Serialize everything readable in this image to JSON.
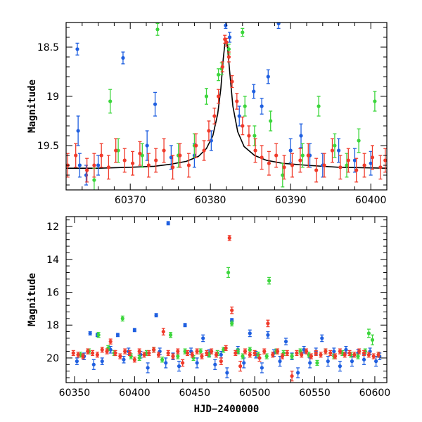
{
  "chart_data": [
    {
      "type": "scatter",
      "panel": "top",
      "xlabel": "",
      "ylabel": "Magnitude",
      "xlim": [
        60362,
        60402
      ],
      "ylim": [
        19.95,
        18.25
      ],
      "y_inverted": true,
      "xticks": [
        60370,
        60380,
        60390,
        60400
      ],
      "yticks": [
        18.5,
        19,
        19.5
      ],
      "colors": {
        "blue": "#1f5fe0",
        "green": "#3cd63c",
        "red": "#f03a2a",
        "model": "#000000"
      },
      "model_curve": {
        "name": "",
        "x": [
          60362,
          60366,
          60370,
          60373,
          60375,
          60377,
          60378.5,
          60379.5,
          60380.3,
          60380.9,
          60381.3,
          60381.6,
          60381.85,
          60382.1,
          60382.4,
          60382.8,
          60383.4,
          60384.2,
          60385.5,
          60387,
          60389,
          60392,
          60396,
          60402
        ],
        "y": [
          19.73,
          19.73,
          19.72,
          19.71,
          19.69,
          19.66,
          19.61,
          19.53,
          19.4,
          19.18,
          18.92,
          18.62,
          18.43,
          18.47,
          18.75,
          19.1,
          19.36,
          19.51,
          19.6,
          19.65,
          19.68,
          19.7,
          19.72,
          19.73
        ]
      },
      "series": [
        {
          "name": "",
          "color": "blue",
          "x": [
            60363.4,
            60363.5,
            60363.7,
            60364.5,
            60366.0,
            60369.1,
            60372.1,
            60373.1,
            60375.1,
            60378.0,
            60380.1,
            60381.9,
            60382.4,
            60383.6,
            60385.4,
            60386.4,
            60387.2,
            60388.5,
            60390.0,
            60391.3,
            60392.4,
            60394.0,
            60396.0,
            60398.0,
            60400.0
          ],
          "y": [
            18.52,
            19.35,
            19.7,
            19.8,
            19.7,
            18.61,
            19.5,
            19.08,
            19.62,
            19.6,
            19.45,
            18.28,
            18.4,
            19.2,
            18.95,
            19.1,
            18.8,
            18.26,
            19.55,
            19.4,
            19.6,
            19.7,
            19.55,
            19.65,
            19.68
          ],
          "err": [
            0.06,
            0.15,
            0.12,
            0.1,
            0.1,
            0.06,
            0.15,
            0.12,
            0.12,
            0.12,
            0.1,
            0.03,
            0.05,
            0.1,
            0.07,
            0.08,
            0.07,
            0.05,
            0.12,
            0.12,
            0.12,
            0.12,
            0.12,
            0.12,
            0.12
          ]
        },
        {
          "name": "",
          "color": "green",
          "x": [
            60365.5,
            60367.5,
            60368.5,
            60371.5,
            60373.4,
            60376.0,
            60378.0,
            60379.5,
            60381.0,
            60381.4,
            60382.3,
            60384.0,
            60384.3,
            60385.5,
            60387.5,
            60389.0,
            60391.5,
            60393.5,
            60395.5,
            60397.0,
            60398.5,
            60400.5
          ],
          "y": [
            19.85,
            19.05,
            19.55,
            19.6,
            18.32,
            19.6,
            19.5,
            19.0,
            18.78,
            18.72,
            18.52,
            18.35,
            19.1,
            19.4,
            19.25,
            19.8,
            19.6,
            19.1,
            19.5,
            19.7,
            19.45,
            19.05
          ],
          "err": [
            0.12,
            0.12,
            0.12,
            0.12,
            0.06,
            0.12,
            0.12,
            0.08,
            0.06,
            0.06,
            0.05,
            0.04,
            0.1,
            0.1,
            0.1,
            0.12,
            0.12,
            0.1,
            0.12,
            0.12,
            0.12,
            0.1
          ]
        },
        {
          "name": "",
          "color": "red",
          "x": [
            60362.2,
            60363.2,
            60364.6,
            60365.5,
            60366.4,
            60367.3,
            60368.2,
            60369.3,
            60370.3,
            60371.2,
            60372.3,
            60373.2,
            60374.2,
            60375.3,
            60376.2,
            60377.3,
            60378.2,
            60379.2,
            60379.8,
            60380.5,
            60381.0,
            60381.5,
            60381.8,
            60382.0,
            60382.3,
            60382.7,
            60383.3,
            60384.0,
            60384.8,
            60385.6,
            60386.4,
            60387.3,
            60388.2,
            60389.2,
            60390.2,
            60391.2,
            60392.2,
            60393.2,
            60394.2,
            60395.2,
            60396.2,
            60397.2,
            60398.2,
            60399.2,
            60400.2,
            60401.2,
            60401.8
          ],
          "y": [
            19.7,
            19.6,
            19.75,
            19.7,
            19.6,
            19.72,
            19.55,
            19.65,
            19.68,
            19.58,
            19.7,
            19.65,
            19.55,
            19.72,
            19.6,
            19.7,
            19.5,
            19.55,
            19.35,
            19.2,
            19.0,
            18.7,
            18.42,
            18.45,
            18.6,
            18.85,
            19.05,
            19.3,
            19.4,
            19.55,
            19.62,
            19.68,
            19.6,
            19.72,
            19.7,
            19.65,
            19.6,
            19.75,
            19.7,
            19.55,
            19.72,
            19.65,
            19.75,
            19.7,
            19.62,
            19.72,
            19.65
          ],
          "err": [
            0.12,
            0.12,
            0.12,
            0.12,
            0.12,
            0.12,
            0.12,
            0.12,
            0.12,
            0.12,
            0.12,
            0.12,
            0.12,
            0.12,
            0.12,
            0.12,
            0.12,
            0.1,
            0.1,
            0.08,
            0.07,
            0.05,
            0.04,
            0.04,
            0.05,
            0.06,
            0.08,
            0.09,
            0.1,
            0.12,
            0.12,
            0.12,
            0.12,
            0.12,
            0.12,
            0.12,
            0.12,
            0.12,
            0.12,
            0.12,
            0.12,
            0.12,
            0.12,
            0.12,
            0.12,
            0.12,
            0.12
          ]
        }
      ]
    },
    {
      "type": "scatter",
      "panel": "bottom",
      "xlabel": "HJD−2400000",
      "ylabel": "Magnitude",
      "xlim": [
        60343,
        60610
      ],
      "ylim": [
        21.5,
        11.4
      ],
      "y_inverted": true,
      "xticks": [
        60350,
        60400,
        60450,
        60500,
        60550,
        60600
      ],
      "yticks": [
        12,
        14,
        16,
        18,
        20
      ],
      "colors": {
        "blue": "#1f5fe0",
        "green": "#3cd63c",
        "red": "#f03a2a"
      },
      "series": [
        {
          "name": "",
          "color": "blue",
          "x": [
            60352,
            60358,
            60363,
            60366,
            60369,
            60373,
            60380,
            60386,
            60391,
            60395,
            60400,
            60405,
            60411,
            60418,
            60421,
            60426,
            60428,
            60432,
            60437,
            60442,
            60447,
            60452,
            60457,
            60462,
            60467,
            60472,
            60477,
            60481,
            60486,
            60491,
            60496,
            60501,
            60506,
            60511,
            60516,
            60521,
            60526,
            60531,
            60536,
            60541,
            60546,
            60551,
            60556,
            60561,
            60566,
            60571,
            60576,
            60581,
            60586,
            60591,
            60596,
            60601,
            60604
          ],
          "y": [
            20.2,
            19.9,
            18.5,
            20.4,
            18.6,
            20.2,
            19.5,
            18.6,
            20.1,
            19.6,
            18.3,
            19.8,
            20.6,
            17.4,
            19.6,
            20.3,
            11.8,
            19.9,
            20.5,
            18.0,
            19.6,
            20.3,
            18.8,
            19.7,
            20.4,
            19.8,
            20.9,
            17.7,
            19.5,
            20.3,
            18.5,
            19.8,
            20.6,
            18.6,
            19.7,
            20.2,
            19.0,
            19.9,
            20.9,
            19.5,
            20.3,
            19.6,
            18.8,
            20.2,
            19.6,
            20.5,
            19.5,
            20.2,
            19.7,
            20.1,
            19.6,
            20.2,
            19.9
          ],
          "err": [
            0.2,
            0.2,
            0.1,
            0.3,
            0.1,
            0.2,
            0.2,
            0.1,
            0.2,
            0.2,
            0.1,
            0.2,
            0.3,
            0.1,
            0.2,
            0.3,
            0.1,
            0.2,
            0.3,
            0.1,
            0.2,
            0.3,
            0.2,
            0.2,
            0.3,
            0.2,
            0.3,
            0.1,
            0.2,
            0.3,
            0.2,
            0.2,
            0.3,
            0.2,
            0.2,
            0.3,
            0.2,
            0.2,
            0.3,
            0.2,
            0.3,
            0.2,
            0.2,
            0.3,
            0.2,
            0.3,
            0.2,
            0.3,
            0.2,
            0.3,
            0.2,
            0.3,
            0.2
          ]
        },
        {
          "name": "",
          "color": "green",
          "x": [
            60355,
            60362,
            60370,
            60378,
            60383,
            60390,
            60397,
            60404,
            60410,
            60416,
            60423,
            60430,
            60436,
            60442,
            60449,
            60455,
            60462,
            60469,
            60474,
            60478,
            60481,
            60486,
            60490,
            60496,
            60503,
            60510,
            60512,
            60518,
            60524,
            60531,
            60538,
            60545,
            60552,
            60559,
            60566,
            60573,
            60580,
            60586,
            60592,
            60595,
            60598,
            60603
          ],
          "y": [
            19.8,
            19.6,
            18.6,
            19.4,
            19.7,
            17.6,
            19.9,
            20.0,
            19.7,
            19.5,
            20.1,
            18.6,
            19.9,
            19.6,
            20.0,
            19.6,
            19.8,
            19.7,
            19.5,
            14.8,
            17.9,
            19.6,
            19.9,
            19.5,
            19.8,
            19.9,
            15.3,
            19.6,
            19.7,
            19.9,
            19.6,
            19.8,
            20.3,
            19.6,
            19.9,
            19.7,
            19.8,
            19.9,
            19.6,
            18.5,
            18.9,
            19.8
          ],
          "err": [
            0.15,
            0.15,
            0.15,
            0.15,
            0.15,
            0.15,
            0.15,
            0.15,
            0.15,
            0.15,
            0.15,
            0.15,
            0.15,
            0.15,
            0.15,
            0.15,
            0.15,
            0.15,
            0.15,
            0.3,
            0.15,
            0.15,
            0.15,
            0.15,
            0.15,
            0.15,
            0.2,
            0.15,
            0.15,
            0.15,
            0.15,
            0.15,
            0.15,
            0.15,
            0.15,
            0.15,
            0.15,
            0.15,
            0.15,
            0.25,
            0.3,
            0.15
          ]
        },
        {
          "name": "",
          "color": "red",
          "x": [
            60349,
            60353,
            60357,
            60361,
            60365,
            60369,
            60373,
            60377,
            60380,
            60384,
            60388,
            60392,
            60396,
            60400,
            60404,
            60408,
            60412,
            60416,
            60420,
            60424,
            60428,
            60432,
            60436,
            60440,
            60444,
            60448,
            60452,
            60456,
            60460,
            60464,
            60468,
            60472,
            60476,
            60479,
            60481,
            60484,
            60488,
            60492,
            60496,
            60500,
            60504,
            60508,
            60511,
            60515,
            60519,
            60523,
            60527,
            60531,
            60535,
            60539,
            60543,
            60547,
            60551,
            60555,
            60559,
            60563,
            60567,
            60571,
            60575,
            60579,
            60583,
            60587,
            60591,
            60595,
            60599,
            60603
          ],
          "y": [
            19.7,
            19.8,
            19.9,
            19.6,
            19.7,
            19.8,
            19.5,
            19.6,
            19.0,
            19.7,
            19.9,
            19.6,
            19.7,
            20.1,
            19.6,
            19.8,
            19.7,
            19.5,
            19.8,
            18.4,
            19.7,
            19.9,
            19.6,
            20.3,
            19.7,
            19.8,
            19.6,
            19.9,
            19.7,
            19.6,
            19.8,
            20.2,
            19.4,
            12.7,
            17.1,
            19.7,
            20.5,
            19.6,
            19.8,
            19.7,
            20.0,
            19.6,
            17.9,
            19.8,
            19.6,
            19.9,
            19.7,
            21.1,
            19.7,
            19.8,
            19.6,
            19.9,
            19.7,
            19.8,
            19.6,
            19.7,
            19.9,
            19.6,
            19.8,
            19.7,
            19.8,
            19.6,
            19.7,
            19.8,
            19.9,
            19.8
          ],
          "err": [
            0.15,
            0.15,
            0.15,
            0.15,
            0.15,
            0.15,
            0.15,
            0.15,
            0.15,
            0.15,
            0.15,
            0.15,
            0.15,
            0.15,
            0.15,
            0.15,
            0.15,
            0.15,
            0.15,
            0.2,
            0.15,
            0.15,
            0.15,
            0.2,
            0.15,
            0.15,
            0.15,
            0.15,
            0.15,
            0.15,
            0.15,
            0.2,
            0.15,
            0.15,
            0.2,
            0.15,
            0.3,
            0.15,
            0.15,
            0.15,
            0.2,
            0.15,
            0.2,
            0.15,
            0.15,
            0.15,
            0.15,
            0.3,
            0.15,
            0.15,
            0.15,
            0.15,
            0.15,
            0.15,
            0.15,
            0.15,
            0.15,
            0.15,
            0.15,
            0.15,
            0.15,
            0.15,
            0.15,
            0.15,
            0.15,
            0.15
          ]
        }
      ]
    }
  ]
}
